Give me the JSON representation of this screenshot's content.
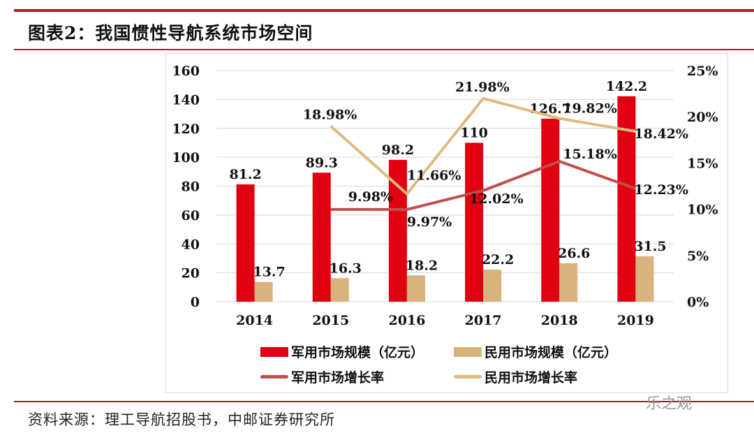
{
  "title": "图表2：我国惯性导航系统市场空间",
  "source": "资料来源：理工导航招股书，中邮证券研究所",
  "watermark": "乐之观",
  "colors": {
    "military_bar": "#e00012",
    "civil_bar": "#d9b27c",
    "military_line": "#c0504d",
    "civil_line": "#dfb97e",
    "rule": "#c8102e"
  },
  "chart_data": {
    "type": "bar+line",
    "categories": [
      "2014",
      "2015",
      "2016",
      "2017",
      "2018",
      "2019"
    ],
    "left_axis": {
      "ylim": [
        0,
        160
      ],
      "ticks": [
        "0",
        "20",
        "40",
        "60",
        "80",
        "100",
        "120",
        "140",
        "160"
      ]
    },
    "right_axis": {
      "ylim": [
        0,
        25
      ],
      "ticks": [
        "0%",
        "5%",
        "10%",
        "15%",
        "20%",
        "25%"
      ]
    },
    "grid": true,
    "legend_position": "bottom",
    "series": [
      {
        "name": "军用市场规模（亿元）",
        "type": "bar",
        "axis": "left",
        "values": [
          81.2,
          89.3,
          98.2,
          110,
          126.7,
          142.2
        ],
        "labels": [
          "81.2",
          "89.3",
          "98.2",
          "110",
          "126.7",
          "142.2"
        ]
      },
      {
        "name": "民用市场规模（亿元）",
        "type": "bar",
        "axis": "left",
        "values": [
          13.7,
          16.3,
          18.2,
          22.2,
          26.6,
          31.5
        ],
        "labels": [
          "13.7",
          "16.3",
          "18.2",
          "22.2",
          "26.6",
          "31.5"
        ]
      },
      {
        "name": "军用市场增长率",
        "type": "line",
        "axis": "right",
        "values": [
          null,
          9.98,
          9.97,
          12.02,
          15.18,
          12.23
        ],
        "labels": [
          "",
          "9.98%",
          "9.97%",
          "12.02%",
          "15.18%",
          "12.23%"
        ]
      },
      {
        "name": "民用市场增长率",
        "type": "line",
        "axis": "right",
        "values": [
          null,
          18.98,
          11.66,
          21.98,
          19.82,
          18.42
        ],
        "labels": [
          "",
          "18.98%",
          "11.66%",
          "21.98%",
          "19.82%",
          "18.42%"
        ]
      }
    ]
  }
}
